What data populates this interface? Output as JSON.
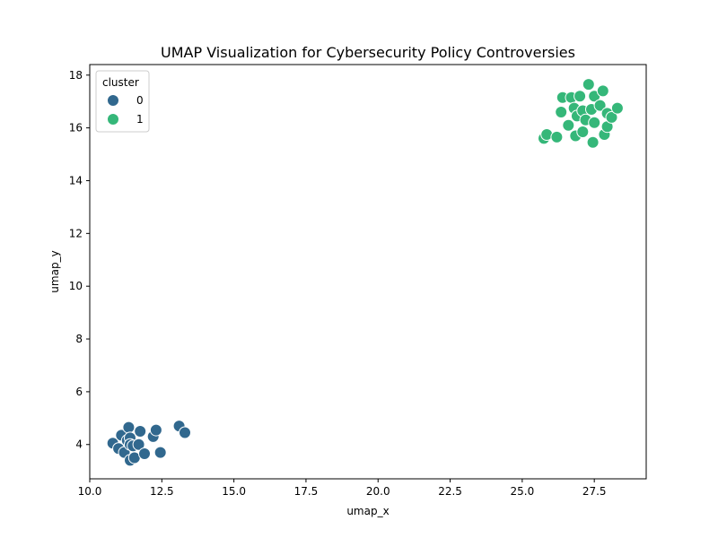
{
  "chart_data": {
    "type": "scatter",
    "title": "UMAP Visualization for Cybersecurity Policy Controversies",
    "xlabel": "umap_x",
    "ylabel": "umap_y",
    "xlim": [
      10.0,
      29.3
    ],
    "ylim": [
      2.7,
      18.4
    ],
    "xticks": [
      10.0,
      12.5,
      15.0,
      17.5,
      20.0,
      22.5,
      25.0,
      27.5
    ],
    "xtick_labels": [
      "10.0",
      "12.5",
      "15.0",
      "17.5",
      "20.0",
      "22.5",
      "25.0",
      "27.5"
    ],
    "yticks": [
      4,
      6,
      8,
      10,
      12,
      14,
      16,
      18
    ],
    "ytick_labels": [
      "4",
      "6",
      "8",
      "10",
      "12",
      "14",
      "16",
      "18"
    ],
    "grid": false,
    "legend": {
      "title": "cluster",
      "placement": "top-left"
    },
    "series": [
      {
        "name": "0",
        "color": "#31688e",
        "points": [
          [
            10.8,
            4.05
          ],
          [
            11.0,
            3.85
          ],
          [
            11.1,
            4.35
          ],
          [
            11.2,
            3.7
          ],
          [
            11.3,
            4.15
          ],
          [
            11.35,
            4.65
          ],
          [
            11.4,
            4.25
          ],
          [
            11.4,
            4.0
          ],
          [
            11.4,
            3.4
          ],
          [
            11.5,
            3.95
          ],
          [
            11.55,
            3.5
          ],
          [
            11.7,
            4.0
          ],
          [
            11.75,
            4.5
          ],
          [
            11.9,
            3.65
          ],
          [
            12.2,
            4.3
          ],
          [
            12.3,
            4.55
          ],
          [
            12.45,
            3.7
          ],
          [
            13.1,
            4.7
          ],
          [
            13.3,
            4.45
          ]
        ]
      },
      {
        "name": "1",
        "color": "#35b779",
        "points": [
          [
            25.75,
            15.6
          ],
          [
            25.85,
            15.75
          ],
          [
            26.2,
            15.65
          ],
          [
            26.35,
            16.6
          ],
          [
            26.4,
            17.15
          ],
          [
            26.6,
            16.1
          ],
          [
            26.7,
            17.15
          ],
          [
            26.8,
            16.75
          ],
          [
            26.85,
            15.7
          ],
          [
            26.9,
            16.45
          ],
          [
            27.0,
            17.2
          ],
          [
            27.1,
            16.65
          ],
          [
            27.1,
            15.85
          ],
          [
            27.2,
            16.3
          ],
          [
            27.3,
            17.65
          ],
          [
            27.4,
            16.7
          ],
          [
            27.45,
            15.45
          ],
          [
            27.5,
            17.2
          ],
          [
            27.5,
            16.2
          ],
          [
            27.7,
            16.85
          ],
          [
            27.8,
            17.4
          ],
          [
            27.85,
            15.75
          ],
          [
            27.95,
            16.05
          ],
          [
            27.95,
            16.55
          ],
          [
            28.1,
            16.4
          ],
          [
            28.3,
            16.75
          ]
        ]
      }
    ]
  }
}
